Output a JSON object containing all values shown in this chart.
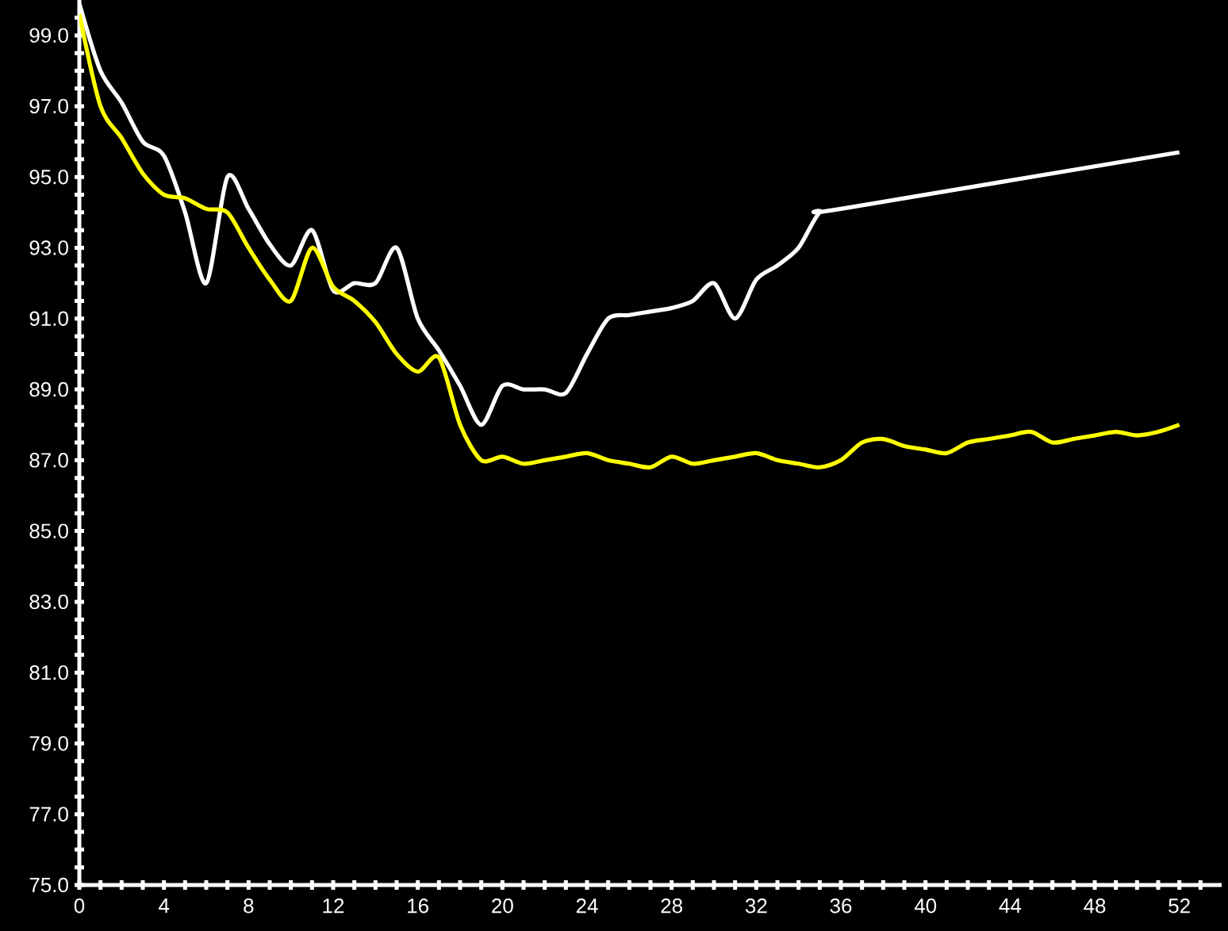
{
  "chart_data": {
    "type": "line",
    "x": [
      0,
      1,
      2,
      3,
      4,
      5,
      6,
      7,
      8,
      9,
      10,
      11,
      12,
      13,
      14,
      15,
      16,
      17,
      18,
      19,
      20,
      21,
      22,
      23,
      24,
      25,
      26,
      27,
      28,
      29,
      30,
      31,
      32,
      33,
      34,
      35,
      36,
      37,
      38,
      39,
      40,
      41,
      42,
      43,
      44,
      45,
      46,
      47,
      48,
      49,
      50,
      51,
      52
    ],
    "series": [
      {
        "color": "#ffffff",
        "x": [
          0,
          1,
          2,
          3,
          4,
          5,
          6,
          7,
          8,
          9,
          10,
          11,
          12,
          13,
          14,
          15,
          16,
          17,
          18,
          19,
          20,
          21,
          22,
          23,
          24,
          25,
          26,
          27,
          28,
          29,
          30,
          31,
          32,
          33,
          34,
          35,
          36,
          52
        ],
        "values": [
          99.9,
          98.0,
          97.1,
          96.0,
          95.6,
          94.0,
          92.0,
          95.0,
          94.1,
          93.1,
          92.5,
          93.5,
          91.8,
          92.0,
          92.0,
          93.0,
          91.0,
          90.1,
          89.1,
          88.0,
          89.1,
          89.0,
          89.0,
          88.9,
          90.0,
          91.0,
          91.1,
          91.2,
          91.3,
          91.5,
          92.0,
          91.0,
          92.1,
          92.5,
          93.0,
          94.0,
          94.1,
          95.7
        ]
      },
      {
        "color": "#ffff00",
        "values": [
          99.6,
          97.0,
          96.1,
          95.1,
          94.5,
          94.4,
          94.1,
          94.0,
          93.0,
          92.1,
          91.5,
          93.0,
          91.9,
          91.5,
          90.9,
          90.0,
          89.5,
          89.9,
          88.0,
          87.0,
          87.1,
          86.9,
          87.0,
          87.1,
          87.2,
          87.0,
          86.9,
          86.8,
          87.1,
          86.9,
          87.0,
          87.1,
          87.2,
          87.0,
          86.9,
          86.8,
          87.0,
          87.5,
          87.6,
          87.4,
          87.3,
          87.2,
          87.5,
          87.6,
          87.7,
          87.8,
          87.5,
          87.6,
          87.7,
          87.8,
          87.7,
          87.8,
          88.0
        ]
      }
    ],
    "xlim": [
      0,
      54
    ],
    "ylim": [
      75,
      100
    ],
    "xticks": [
      0,
      {
        "value": 1,
        "label": null
      },
      {
        "value": 2,
        "label": null
      },
      {
        "value": 3,
        "label": null
      },
      4,
      {
        "value": 5,
        "label": null
      },
      {
        "value": 6,
        "label": null
      },
      {
        "value": 7,
        "label": null
      },
      8,
      {
        "value": 9,
        "label": null
      },
      {
        "value": 10,
        "label": null
      },
      {
        "value": 11,
        "label": null
      },
      12,
      {
        "value": 13,
        "label": null
      },
      {
        "value": 14,
        "label": null
      },
      {
        "value": 15,
        "label": null
      },
      16,
      {
        "value": 17,
        "label": null
      },
      {
        "value": 18,
        "label": null
      },
      {
        "value": 19,
        "label": null
      },
      20,
      {
        "value": 21,
        "label": null
      },
      {
        "value": 22,
        "label": null
      },
      {
        "value": 23,
        "label": null
      },
      24,
      {
        "value": 25,
        "label": null
      },
      {
        "value": 26,
        "label": null
      },
      {
        "value": 27,
        "label": null
      },
      28,
      {
        "value": 29,
        "label": null
      },
      {
        "value": 30,
        "label": null
      },
      {
        "value": 31,
        "label": null
      },
      32,
      {
        "value": 33,
        "label": null
      },
      {
        "value": 34,
        "label": null
      },
      {
        "value": 35,
        "label": null
      },
      36,
      {
        "value": 37,
        "label": null
      },
      {
        "value": 38,
        "label": null
      },
      {
        "value": 39,
        "label": null
      },
      40,
      {
        "value": 41,
        "label": null
      },
      {
        "value": 42,
        "label": null
      },
      {
        "value": 43,
        "label": null
      },
      44,
      {
        "value": 45,
        "label": null
      },
      {
        "value": 46,
        "label": null
      },
      {
        "value": 47,
        "label": null
      },
      48,
      {
        "value": 49,
        "label": null
      },
      {
        "value": 50,
        "label": null
      },
      {
        "value": 51,
        "label": null
      },
      52,
      {
        "value": 53,
        "label": null
      }
    ],
    "yticks": [
      {
        "value": 75,
        "label": "75.0"
      },
      {
        "value": 75.5,
        "label": null
      },
      {
        "value": 76,
        "label": null
      },
      {
        "value": 76.5,
        "label": null
      },
      {
        "value": 77,
        "label": "77.0"
      },
      {
        "value": 77.5,
        "label": null
      },
      {
        "value": 78,
        "label": null
      },
      {
        "value": 78.5,
        "label": null
      },
      {
        "value": 79,
        "label": "79.0"
      },
      {
        "value": 79.5,
        "label": null
      },
      {
        "value": 80,
        "label": null
      },
      {
        "value": 80.5,
        "label": null
      },
      {
        "value": 81,
        "label": "81.0"
      },
      {
        "value": 81.5,
        "label": null
      },
      {
        "value": 82,
        "label": null
      },
      {
        "value": 82.5,
        "label": null
      },
      {
        "value": 83,
        "label": "83.0"
      },
      {
        "value": 83.5,
        "label": null
      },
      {
        "value": 84,
        "label": null
      },
      {
        "value": 84.5,
        "label": null
      },
      {
        "value": 85,
        "label": "85.0"
      },
      {
        "value": 85.5,
        "label": null
      },
      {
        "value": 86,
        "label": null
      },
      {
        "value": 86.5,
        "label": null
      },
      {
        "value": 87,
        "label": "87.0"
      },
      {
        "value": 87.5,
        "label": null
      },
      {
        "value": 88,
        "label": null
      },
      {
        "value": 88.5,
        "label": null
      },
      {
        "value": 89,
        "label": "89.0"
      },
      {
        "value": 89.5,
        "label": null
      },
      {
        "value": 90,
        "label": null
      },
      {
        "value": 90.5,
        "label": null
      },
      {
        "value": 91,
        "label": "91.0"
      },
      {
        "value": 91.5,
        "label": null
      },
      {
        "value": 92,
        "label": null
      },
      {
        "value": 92.5,
        "label": null
      },
      {
        "value": 93,
        "label": "93.0"
      },
      {
        "value": 93.5,
        "label": null
      },
      {
        "value": 94,
        "label": null
      },
      {
        "value": 94.5,
        "label": null
      },
      {
        "value": 95,
        "label": "95.0"
      },
      {
        "value": 95.5,
        "label": null
      },
      {
        "value": 96,
        "label": null
      },
      {
        "value": 96.5,
        "label": null
      },
      {
        "value": 97,
        "label": "97.0"
      },
      {
        "value": 97.5,
        "label": null
      },
      {
        "value": 98,
        "label": null
      },
      {
        "value": 98.5,
        "label": null
      },
      {
        "value": 99,
        "label": "99.0"
      },
      {
        "value": 99.5,
        "label": null
      }
    ],
    "marker": "none",
    "line_style": "solid",
    "grid": false,
    "legend": false
  }
}
